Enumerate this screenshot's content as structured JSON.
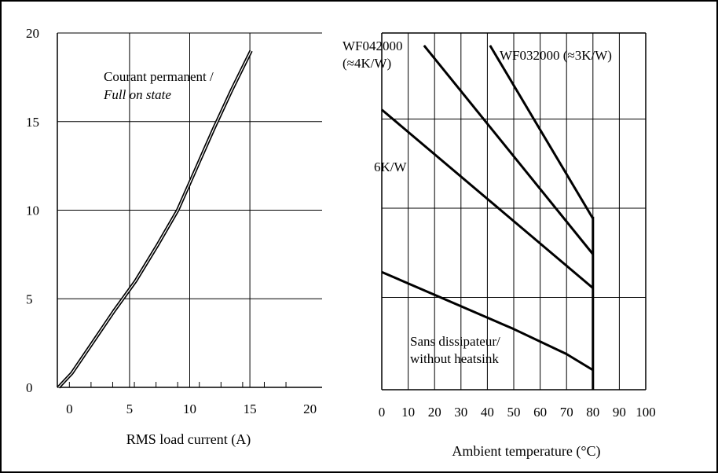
{
  "chart_data": [
    {
      "type": "line",
      "title": "",
      "xlabel": "RMS load current (A)",
      "ylabel": "",
      "xlim": [
        -1,
        21
      ],
      "ylim": [
        0,
        20
      ],
      "x_ticks": [
        0,
        5,
        10,
        15,
        20
      ],
      "y_ticks": [
        0,
        5,
        10,
        15,
        20
      ],
      "grid": true,
      "annotations": [
        {
          "text": "Courant permanent /",
          "style": "normal"
        },
        {
          "text": "Full on state",
          "style": "italic"
        }
      ],
      "series": [
        {
          "points": [
            [
              -0.9,
              0
            ],
            [
              0.2,
              0.8
            ],
            [
              2.0,
              2.6
            ],
            [
              3.7,
              4.3
            ],
            [
              5.5,
              6.0
            ],
            [
              7.3,
              8.0
            ],
            [
              9.0,
              10.0
            ],
            [
              10.5,
              12.3
            ],
            [
              12.0,
              14.6
            ],
            [
              13.5,
              16.8
            ],
            [
              15.1,
              19.0
            ]
          ]
        }
      ]
    },
    {
      "type": "line",
      "title": "",
      "xlabel": "Ambient temperature (°C)",
      "ylabel": "",
      "xlim": [
        0,
        100
      ],
      "ylim": [
        0,
        20
      ],
      "x_ticks": [
        0,
        10,
        20,
        30,
        40,
        50,
        60,
        70,
        80,
        90,
        100
      ],
      "grid": true,
      "series": [
        {
          "name": "WF042000 (≈4K/W)",
          "label_lines": [
            "WF042000",
            "(≈4K/W)"
          ],
          "points": [
            [
              16,
              19.3
            ],
            [
              80,
              7.6
            ]
          ]
        },
        {
          "name": "WF032000 (≈3K/W)",
          "label_lines": [
            "WF032000 (≈3K/W)"
          ],
          "points": [
            [
              41,
              19.3
            ],
            [
              80,
              9.6
            ]
          ]
        },
        {
          "name": "6K/W",
          "label_lines": [
            "6K/W"
          ],
          "points": [
            [
              0,
              15.7
            ],
            [
              80,
              5.7
            ]
          ]
        },
        {
          "name": "Sans dissipateur/ without heatsink",
          "label_lines": [
            "Sans dissipateur/",
            "without heatsink"
          ],
          "points": [
            [
              0,
              6.6
            ],
            [
              50,
              3.4
            ],
            [
              70,
              2.0
            ],
            [
              80,
              1.1
            ]
          ]
        }
      ],
      "limit_line": {
        "x": 80,
        "ylim": [
          0,
          9.7
        ]
      }
    }
  ]
}
